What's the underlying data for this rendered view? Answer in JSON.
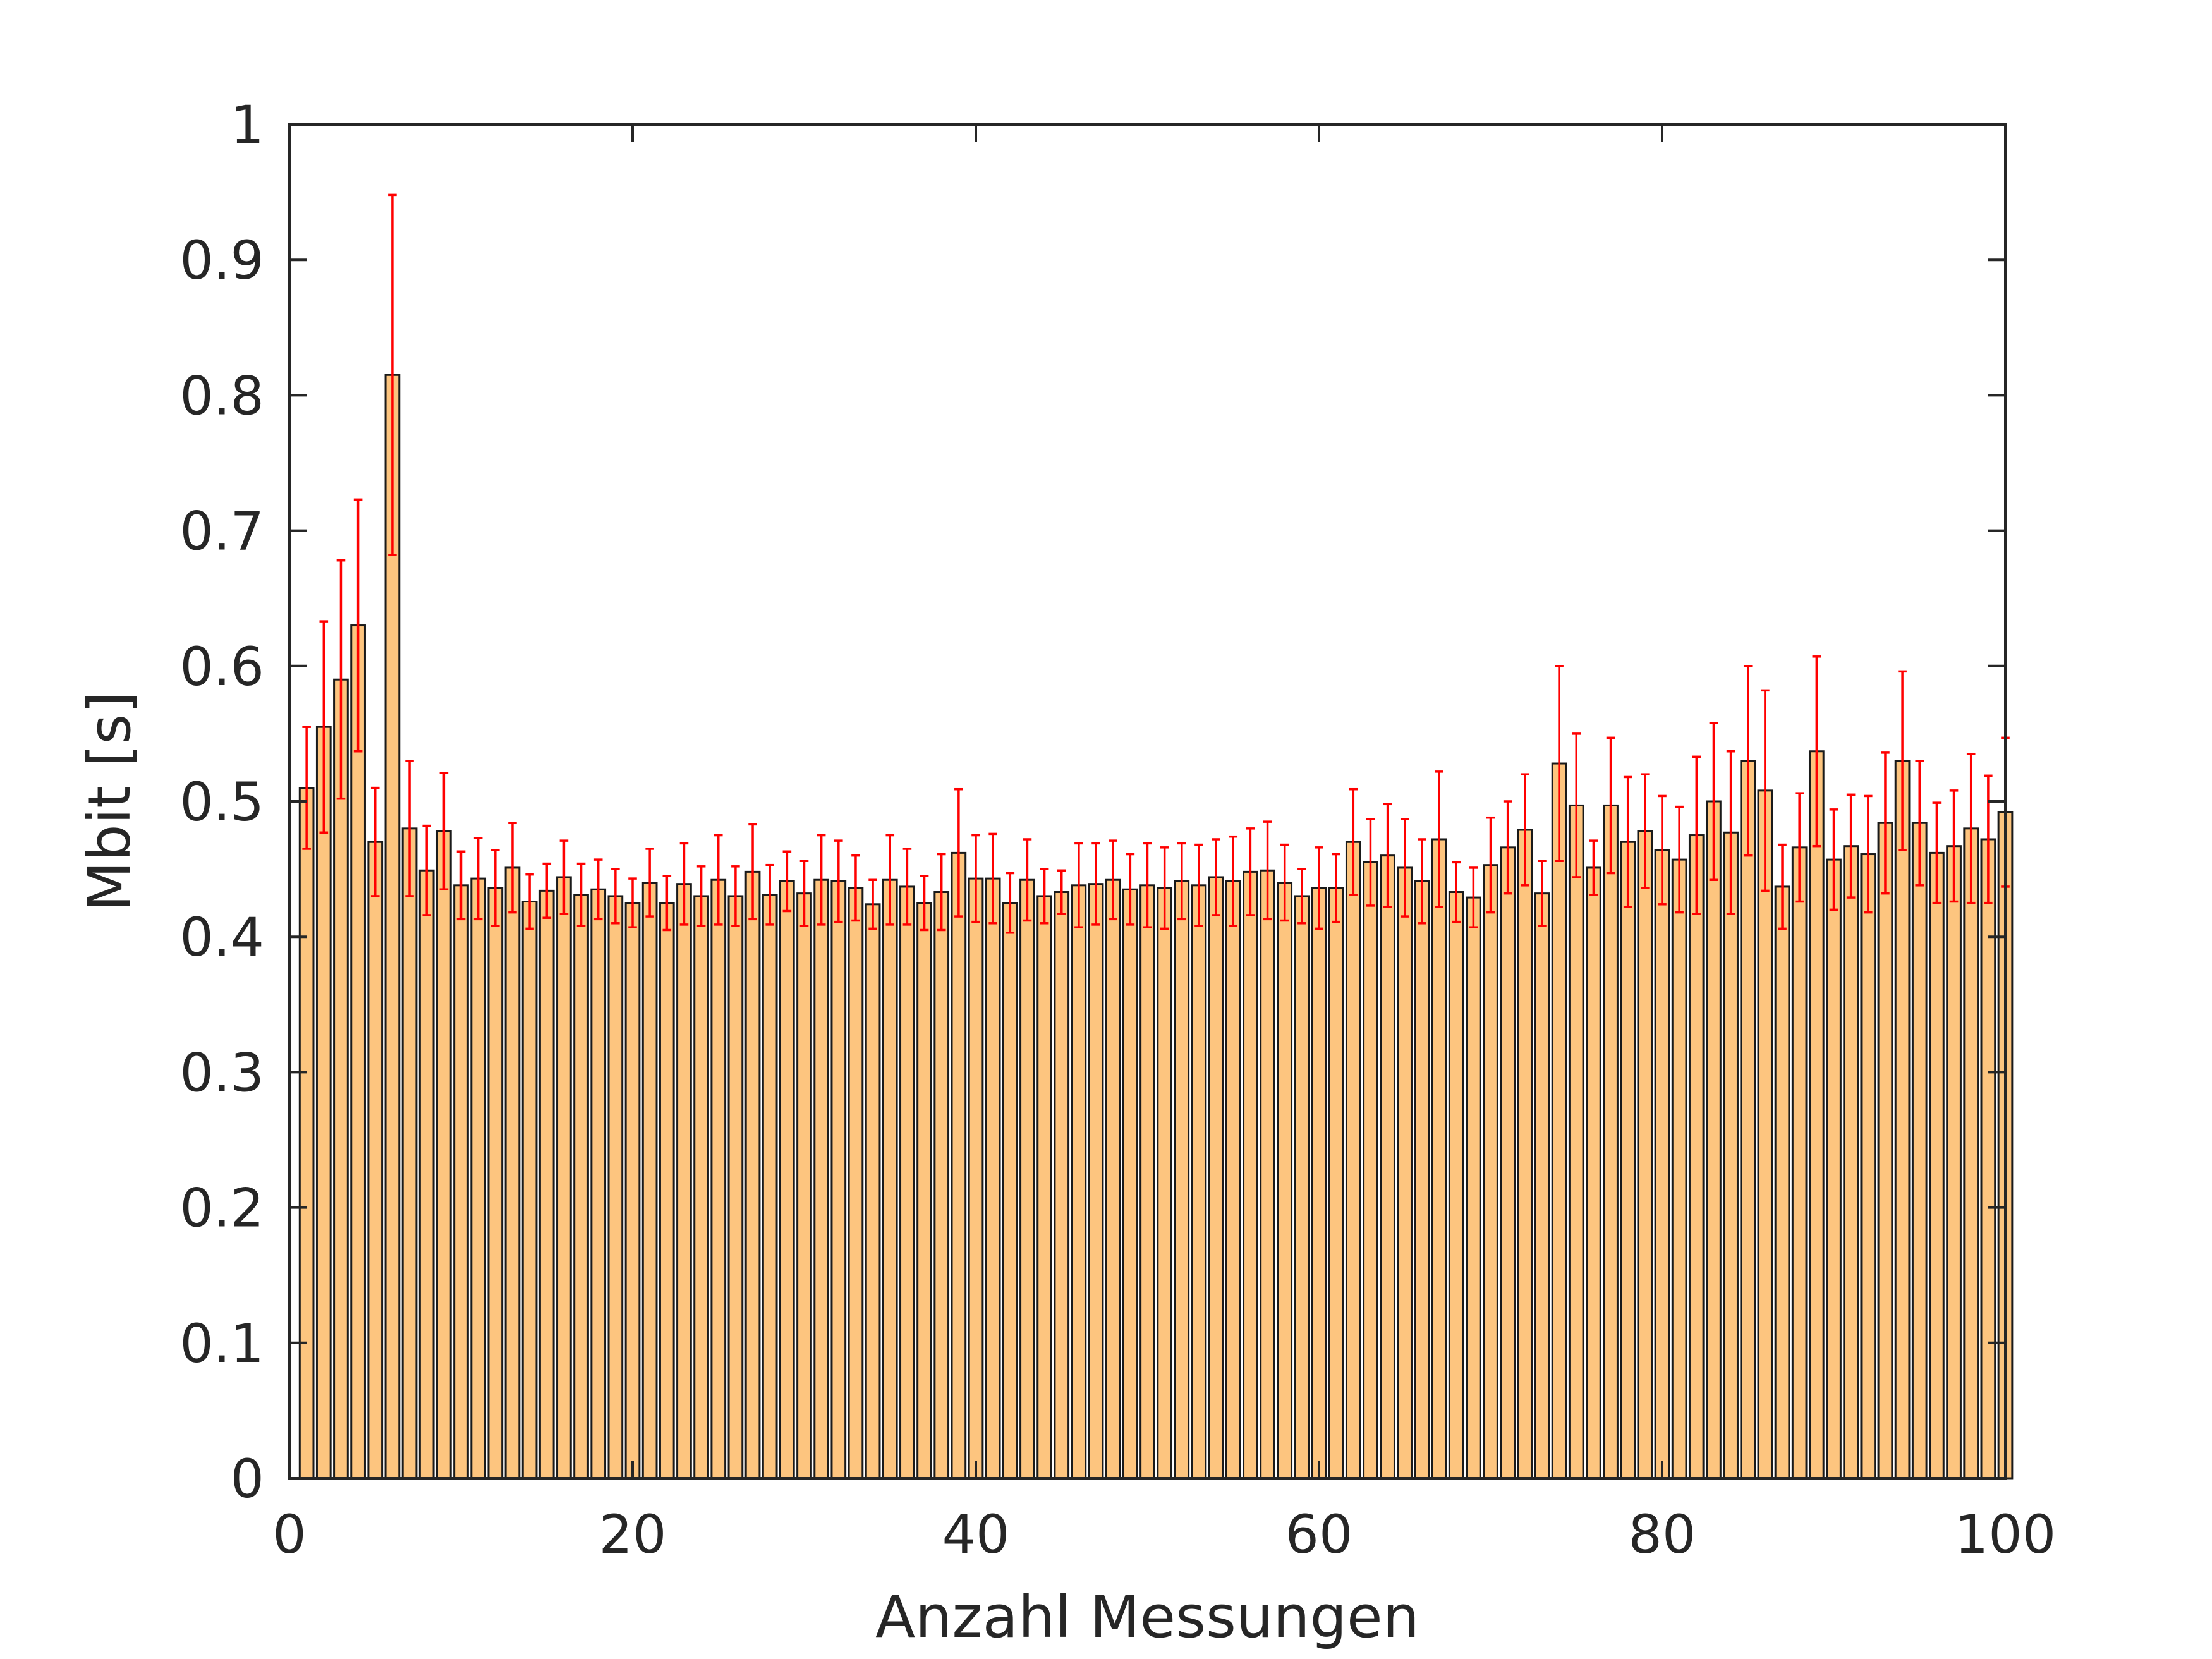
{
  "chart_data": {
    "type": "bar",
    "title": "",
    "xlabel": "Anzahl Messungen",
    "ylabel": "Mbit [s]",
    "xlim": [
      0,
      100
    ],
    "ylim": [
      0,
      1
    ],
    "xticks": [
      0,
      20,
      40,
      60,
      80,
      100
    ],
    "xtick_labels": [
      "0",
      "20",
      "40",
      "60",
      "80",
      "100"
    ],
    "yticks": [
      0,
      0.1,
      0.2,
      0.3,
      0.4,
      0.5,
      0.6,
      0.7,
      0.8,
      0.9,
      1
    ],
    "ytick_labels": [
      "0",
      "0.1",
      "0.2",
      "0.3",
      "0.4",
      "0.5",
      "0.6",
      "0.7",
      "0.8",
      "0.9",
      "1"
    ],
    "grid": false,
    "bar_color": "#fdc57f",
    "bar_edge_color": "#1a1a1a",
    "errorbar_color": "#ff0000",
    "x": [
      1,
      2,
      3,
      4,
      5,
      6,
      7,
      8,
      9,
      10,
      11,
      12,
      13,
      14,
      15,
      16,
      17,
      18,
      19,
      20,
      21,
      22,
      23,
      24,
      25,
      26,
      27,
      28,
      29,
      30,
      31,
      32,
      33,
      34,
      35,
      36,
      37,
      38,
      39,
      40,
      41,
      42,
      43,
      44,
      45,
      46,
      47,
      48,
      49,
      50,
      51,
      52,
      53,
      54,
      55,
      56,
      57,
      58,
      59,
      60,
      61,
      62,
      63,
      64,
      65,
      66,
      67,
      68,
      69,
      70,
      71,
      72,
      73,
      74,
      75,
      76,
      77,
      78,
      79,
      80,
      81,
      82,
      83,
      84,
      85,
      86,
      87,
      88,
      89,
      90,
      91,
      92,
      93,
      94,
      95,
      96,
      97,
      98,
      99,
      100
    ],
    "values": [
      0.51,
      0.555,
      0.59,
      0.63,
      0.47,
      0.815,
      0.48,
      0.449,
      0.478,
      0.438,
      0.443,
      0.436,
      0.451,
      0.426,
      0.434,
      0.444,
      0.431,
      0.435,
      0.43,
      0.425,
      0.44,
      0.425,
      0.439,
      0.43,
      0.442,
      0.43,
      0.448,
      0.431,
      0.441,
      0.432,
      0.442,
      0.441,
      0.436,
      0.424,
      0.442,
      0.437,
      0.425,
      0.433,
      0.462,
      0.443,
      0.443,
      0.425,
      0.442,
      0.43,
      0.433,
      0.438,
      0.439,
      0.442,
      0.435,
      0.438,
      0.436,
      0.441,
      0.438,
      0.444,
      0.441,
      0.448,
      0.449,
      0.44,
      0.43,
      0.436,
      0.436,
      0.47,
      0.455,
      0.46,
      0.451,
      0.441,
      0.472,
      0.433,
      0.429,
      0.453,
      0.466,
      0.479,
      0.432,
      0.528,
      0.497,
      0.451,
      0.497,
      0.47,
      0.478,
      0.464,
      0.457,
      0.475,
      0.5,
      0.477,
      0.53,
      0.508,
      0.437,
      0.466,
      0.537,
      0.457,
      0.467,
      0.461,
      0.484,
      0.53,
      0.484,
      0.462,
      0.467,
      0.48,
      0.472,
      0.492
    ],
    "errors": [
      0.045,
      0.078,
      0.088,
      0.093,
      0.04,
      0.133,
      0.05,
      0.033,
      0.043,
      0.025,
      0.03,
      0.028,
      0.033,
      0.02,
      0.02,
      0.027,
      0.023,
      0.022,
      0.02,
      0.018,
      0.025,
      0.02,
      0.03,
      0.022,
      0.033,
      0.022,
      0.035,
      0.022,
      0.022,
      0.024,
      0.033,
      0.03,
      0.024,
      0.018,
      0.033,
      0.028,
      0.02,
      0.028,
      0.047,
      0.032,
      0.033,
      0.022,
      0.03,
      0.02,
      0.016,
      0.031,
      0.03,
      0.029,
      0.026,
      0.031,
      0.03,
      0.028,
      0.03,
      0.028,
      0.033,
      0.032,
      0.036,
      0.028,
      0.02,
      0.03,
      0.025,
      0.039,
      0.032,
      0.038,
      0.036,
      0.031,
      0.05,
      0.022,
      0.022,
      0.035,
      0.034,
      0.041,
      0.024,
      0.072,
      0.053,
      0.02,
      0.05,
      0.048,
      0.042,
      0.04,
      0.039,
      0.058,
      0.058,
      0.06,
      0.07,
      0.074,
      0.031,
      0.04,
      0.07,
      0.037,
      0.038,
      0.043,
      0.052,
      0.066,
      0.046,
      0.037,
      0.041,
      0.055,
      0.047,
      0.055
    ]
  }
}
